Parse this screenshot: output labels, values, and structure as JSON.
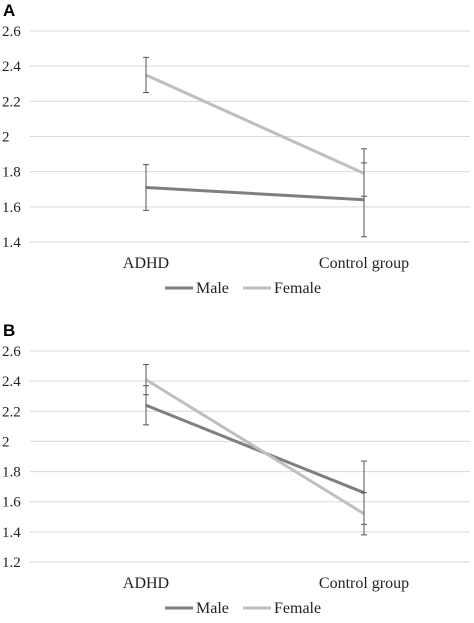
{
  "chart_data": [
    {
      "type": "line",
      "panel_label": "A",
      "categories": [
        "ADHD",
        "Control group"
      ],
      "ylim": [
        1.4,
        2.6
      ],
      "yticks": [
        "1.4",
        "1.6",
        "1.8",
        "2",
        "2.2",
        "2.4",
        "2.6"
      ],
      "grid": true,
      "legend_position": "bottom",
      "series": [
        {
          "name": "Male",
          "color": "#7f7f7f",
          "values": [
            1.71,
            1.64
          ],
          "err_low": [
            1.58,
            1.43
          ],
          "err_high": [
            1.84,
            1.85
          ]
        },
        {
          "name": "Female",
          "color": "#bfbfbf",
          "values": [
            2.35,
            1.79
          ],
          "err_low": [
            2.25,
            1.66
          ],
          "err_high": [
            2.45,
            1.93
          ]
        }
      ]
    },
    {
      "type": "line",
      "panel_label": "B",
      "categories": [
        "ADHD",
        "Control group"
      ],
      "ylim": [
        1.2,
        2.6
      ],
      "yticks": [
        "1.2",
        "1.4",
        "1.6",
        "1.8",
        "2",
        "2.2",
        "2.4",
        "2.6"
      ],
      "grid": true,
      "legend_position": "bottom",
      "series": [
        {
          "name": "Male",
          "color": "#7f7f7f",
          "values": [
            2.24,
            1.66
          ],
          "err_low": [
            2.11,
            1.45
          ],
          "err_high": [
            2.37,
            1.87
          ]
        },
        {
          "name": "Female",
          "color": "#bfbfbf",
          "values": [
            2.41,
            1.52
          ],
          "err_low": [
            2.31,
            1.38
          ],
          "err_high": [
            2.51,
            1.66
          ]
        }
      ]
    }
  ]
}
